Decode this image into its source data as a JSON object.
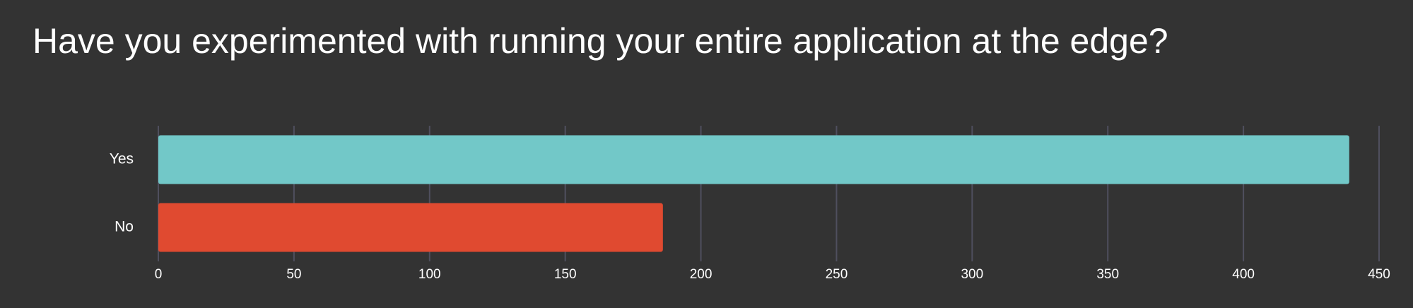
{
  "chart_data": {
    "type": "bar",
    "orientation": "horizontal",
    "title": "Have you experimented with running your entire application at the edge?",
    "categories": [
      "Yes",
      "No"
    ],
    "values": [
      439,
      186
    ],
    "colors": [
      "#72c8c8",
      "#e04a30"
    ],
    "xlim": [
      0,
      450
    ],
    "xticks": [
      0,
      50,
      100,
      150,
      200,
      250,
      300,
      350,
      400,
      450
    ],
    "grid": true
  }
}
